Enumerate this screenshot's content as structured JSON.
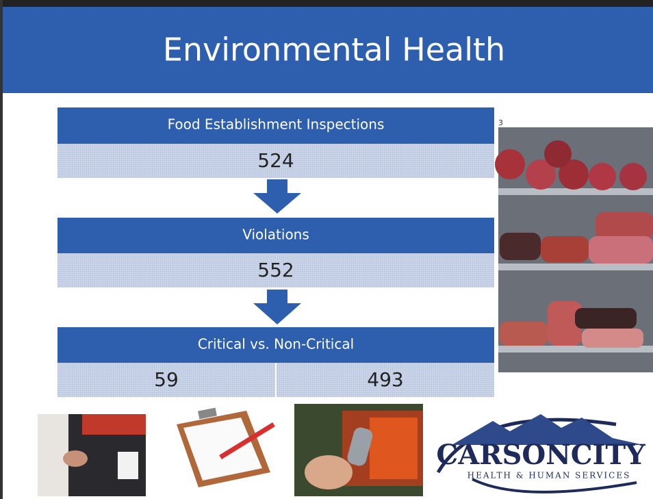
{
  "slide": {
    "title": "Environmental Health",
    "slide_number": "3",
    "steps": [
      {
        "label": "Food Establishment Inspections",
        "values": [
          "524"
        ]
      },
      {
        "label": "Violations",
        "values": [
          "552"
        ]
      },
      {
        "label": "Critical vs. Non-Critical",
        "values": [
          "59",
          "493"
        ]
      }
    ],
    "logo": {
      "name": "CARSONCITY",
      "tagline": "HEALTH & HUMAN SERVICES"
    }
  }
}
